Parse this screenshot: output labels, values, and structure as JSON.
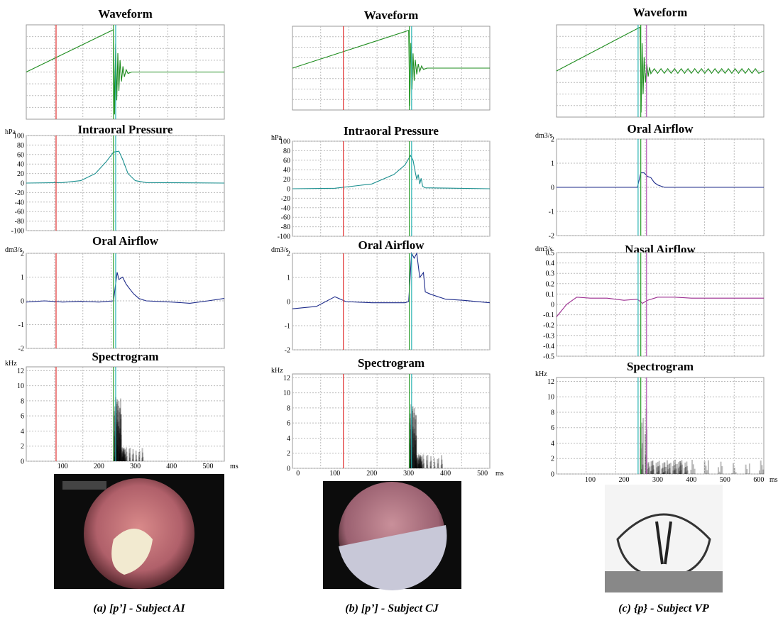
{
  "panels": [
    {
      "caption": "(a) [p’] - Subject AI",
      "xlim": [
        0,
        545
      ],
      "cursors": [
        {
          "x": 82,
          "color": "#e03030"
        },
        {
          "x": 240,
          "color": "#2a9d2a"
        },
        {
          "x": 246,
          "color": "#2bb5b5"
        }
      ],
      "charts": [
        {
          "type": "line",
          "title": "Waveform",
          "ylim": [
            -1,
            1
          ],
          "color": "#1e8c1e",
          "x": [
            0,
            240,
            243,
            246,
            249,
            252,
            255,
            258,
            262,
            266,
            270,
            275,
            280,
            290,
            545
          ],
          "values": [
            0,
            0.9,
            -0.9,
            0.6,
            -0.6,
            0.4,
            -0.4,
            0.25,
            -0.2,
            0.12,
            -0.1,
            0.05,
            -0.03,
            0,
            0
          ]
        },
        {
          "type": "line",
          "title": "Intraoral Pressure",
          "unit": "hPa",
          "ylim": [
            -100,
            100
          ],
          "yticks": [
            100,
            80,
            60,
            40,
            20,
            0,
            -20,
            -40,
            -60,
            -80,
            -100
          ],
          "color": "#1a8f8f",
          "x": [
            0,
            100,
            150,
            190,
            220,
            240,
            255,
            265,
            280,
            300,
            330,
            545
          ],
          "values": [
            0,
            1,
            5,
            20,
            45,
            65,
            67,
            50,
            20,
            5,
            1,
            0
          ]
        },
        {
          "type": "line",
          "title": "Oral Airflow",
          "unit": "dm3/s",
          "ylim": [
            -2,
            2
          ],
          "yticks": [
            2,
            1,
            0,
            -1,
            -2
          ],
          "color": "#1c2a8a",
          "x": [
            0,
            50,
            100,
            150,
            200,
            240,
            250,
            255,
            265,
            275,
            285,
            295,
            310,
            330,
            400,
            450,
            500,
            545
          ],
          "values": [
            -0.05,
            0,
            -0.05,
            -0.02,
            -0.05,
            0,
            1.2,
            0.9,
            1.0,
            0.7,
            0.5,
            0.3,
            0.1,
            0,
            -0.05,
            -0.1,
            0,
            0.1
          ]
        },
        {
          "type": "spectrogram",
          "title": "Spectrogram",
          "unit": "kHz",
          "ylim": [
            0,
            12.5
          ],
          "yticks": [
            12,
            10,
            8,
            6,
            4,
            2,
            0
          ],
          "xticks": [
            100,
            200,
            300,
            400,
            500
          ],
          "xlabel": "ms",
          "onset": 240,
          "offset": 320
        }
      ]
    },
    {
      "caption": "(b) [p’] - Subject CJ",
      "xlim": [
        -15,
        520
      ],
      "cursors": [
        {
          "x": 123,
          "color": "#e03030"
        },
        {
          "x": 302,
          "color": "#2a9d2a"
        },
        {
          "x": 308,
          "color": "#2bb5b5"
        }
      ],
      "charts": [
        {
          "type": "line",
          "title": "Waveform",
          "ylim": [
            -1,
            1
          ],
          "color": "#1e8c1e",
          "x": [
            -15,
            300,
            303,
            306,
            309,
            312,
            315,
            318,
            322,
            326,
            330,
            335,
            340,
            350,
            520
          ],
          "values": [
            0,
            0.9,
            -0.9,
            0.6,
            -0.5,
            0.35,
            -0.3,
            0.2,
            -0.15,
            0.1,
            -0.08,
            0.05,
            -0.03,
            0,
            0
          ]
        },
        {
          "type": "line",
          "title": "Intraoral Pressure",
          "unit": "hPa",
          "ylim": [
            -100,
            100
          ],
          "yticks": [
            100,
            80,
            60,
            40,
            20,
            0,
            -20,
            -40,
            -60,
            -80,
            -100
          ],
          "color": "#1a8f8f",
          "x": [
            -15,
            100,
            200,
            260,
            290,
            305,
            312,
            318,
            322,
            326,
            330,
            334,
            338,
            345,
            520
          ],
          "values": [
            0,
            1,
            10,
            30,
            50,
            70,
            60,
            35,
            20,
            30,
            10,
            22,
            5,
            2,
            0
          ]
        },
        {
          "type": "line",
          "title": "Oral Airflow",
          "unit": "dm3/s",
          "ylim": [
            -2,
            2
          ],
          "yticks": [
            2,
            1,
            0,
            -1,
            -2
          ],
          "color": "#1c2a8a",
          "x": [
            -15,
            50,
            100,
            130,
            200,
            290,
            300,
            308,
            315,
            322,
            330,
            340,
            345,
            360,
            400,
            450,
            520
          ],
          "values": [
            -0.3,
            -0.2,
            0.2,
            0,
            -0.05,
            -0.05,
            0,
            2,
            1.8,
            2,
            1.0,
            1.2,
            0.4,
            0.3,
            0.1,
            0.05,
            -0.05
          ]
        },
        {
          "type": "spectrogram",
          "title": "Spectrogram",
          "unit": "kHz",
          "ylim": [
            0,
            12.5
          ],
          "yticks": [
            12,
            10,
            8,
            6,
            4,
            2,
            0
          ],
          "xticks": [
            0,
            100,
            200,
            300,
            400,
            500
          ],
          "xlabel": "ms",
          "onset": 300,
          "offset": 390
        }
      ]
    },
    {
      "caption": "(c) {p} - Subject VP",
      "xlim": [
        0,
        615
      ],
      "cursors": [
        {
          "x": 242,
          "color": "#2bb5b5"
        },
        {
          "x": 250,
          "color": "#2a9d2a"
        },
        {
          "x": 267,
          "color": "#b050b0"
        }
      ],
      "charts": [
        {
          "type": "line",
          "title": "Waveform",
          "ylim": [
            -1,
            1
          ],
          "color": "#1e8c1e",
          "x": [
            0,
            248,
            251,
            254,
            257,
            260,
            264,
            268,
            272,
            276,
            280,
            290,
            300,
            310,
            320,
            330,
            340,
            350,
            360,
            370,
            380,
            390,
            400,
            410,
            420,
            430,
            440,
            450,
            460,
            470,
            480,
            490,
            500,
            510,
            520,
            530,
            540,
            550,
            560,
            570,
            580,
            590,
            600,
            615
          ],
          "values": [
            0,
            0.95,
            -0.9,
            0.6,
            -0.5,
            0.3,
            -0.25,
            0.15,
            -0.12,
            0.08,
            -0.06,
            0.05,
            -0.05,
            0.05,
            -0.05,
            0.05,
            -0.05,
            0.05,
            -0.05,
            0.05,
            -0.05,
            0.05,
            -0.05,
            0.05,
            -0.05,
            0.05,
            -0.05,
            0.05,
            -0.05,
            0.05,
            -0.05,
            0.05,
            -0.05,
            0.05,
            -0.05,
            0.05,
            -0.05,
            0.05,
            -0.05,
            0.05,
            -0.05,
            0.05,
            -0.05,
            0
          ]
        },
        {
          "type": "line",
          "title": "Oral Airflow",
          "unit": "dm3/s",
          "ylim": [
            -2,
            2
          ],
          "yticks": [
            2,
            1,
            0,
            -1,
            -2
          ],
          "color": "#1c2a8a",
          "x": [
            0,
            240,
            250,
            260,
            270,
            280,
            290,
            300,
            320,
            400,
            615
          ],
          "values": [
            0,
            0,
            0.6,
            0.6,
            0.45,
            0.4,
            0.2,
            0.1,
            0,
            0,
            0
          ]
        },
        {
          "type": "line",
          "title": "Nasal Airflow",
          "unit": "dm3/s",
          "ylim": [
            -0.5,
            0.5
          ],
          "yticks": [
            0.5,
            0.4,
            0.3,
            0.2,
            0.1,
            0,
            -0.1,
            -0.2,
            -0.3,
            -0.4,
            -0.5
          ],
          "color": "#9b2c8f",
          "x": [
            0,
            30,
            60,
            100,
            150,
            200,
            240,
            255,
            270,
            300,
            350,
            400,
            450,
            500,
            615
          ],
          "values": [
            -0.12,
            0,
            0.07,
            0.06,
            0.06,
            0.04,
            0.05,
            0.01,
            0.04,
            0.07,
            0.07,
            0.06,
            0.06,
            0.06,
            0.06
          ]
        },
        {
          "type": "spectrogram",
          "title": "Spectrogram",
          "unit": "kHz",
          "ylim": [
            0,
            12.5
          ],
          "yticks": [
            12,
            10,
            8,
            6,
            4,
            2,
            0
          ],
          "xticks": [
            100,
            200,
            300,
            400,
            500,
            600
          ],
          "xlabel": "ms",
          "onset": 245,
          "offset": 615
        }
      ]
    }
  ]
}
